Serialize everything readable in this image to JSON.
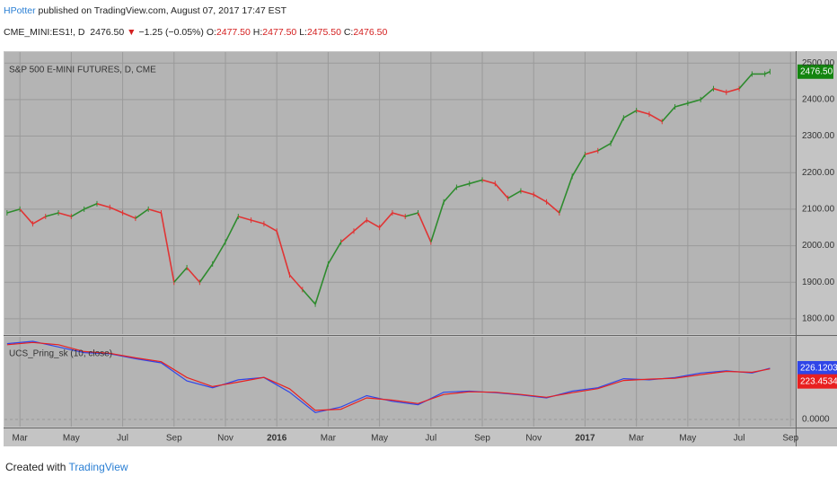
{
  "header": {
    "publisher": "HPotter",
    "published": "published on TradingView.com, August 07, 2017 17:47 EST",
    "symbol": "CME_MINI:ES1!, D",
    "last": "2476.50",
    "arrow": "▼",
    "change": "−1.25 (−0.05%)",
    "o_label": "O:",
    "o": "2477.50",
    "h_label": "H:",
    "h": "2477.50",
    "l_label": "L:",
    "l": "2475.50",
    "c_label": "C:",
    "c": "2476.50"
  },
  "chart_data": [
    {
      "type": "bar",
      "title": "S&P 500 E-MINI FUTURES, D, CME",
      "x": [
        1.5,
        2,
        2.5,
        3,
        3.5,
        4,
        4.5,
        5,
        5.5,
        6,
        6.5,
        7,
        7.5,
        8,
        8.5,
        9,
        9.5,
        10,
        10.5,
        11,
        11.5,
        12,
        12.5,
        13,
        13.5,
        14,
        14.5,
        15,
        15.5,
        16,
        16.5,
        17,
        17.5,
        18,
        18.5,
        19,
        19.5,
        20,
        20.5,
        21,
        21.5,
        22,
        22.5,
        23,
        23.5,
        24,
        24.5,
        25,
        25.5,
        26,
        26.5,
        27,
        27.5,
        28,
        28.5,
        29,
        29.5,
        30,
        30.5,
        31,
        31.2
      ],
      "values": [
        2090,
        2100,
        2060,
        2080,
        2090,
        2080,
        2100,
        2115,
        2105,
        2090,
        2075,
        2100,
        2090,
        1900,
        1940,
        1900,
        1950,
        2010,
        2080,
        2070,
        2060,
        2040,
        1920,
        1880,
        1840,
        1950,
        2010,
        2040,
        2070,
        2050,
        2090,
        2080,
        2090,
        2010,
        2120,
        2160,
        2170,
        2180,
        2170,
        2130,
        2150,
        2140,
        2120,
        2090,
        2190,
        2250,
        2260,
        2280,
        2350,
        2370,
        2360,
        2340,
        2380,
        2390,
        2400,
        2430,
        2420,
        2430,
        2470,
        2470,
        2476.5
      ],
      "colors": [
        "#2e8b2e",
        "#2e8b2e",
        "#e03434",
        "#e03434",
        "#2e8b2e",
        "#e03434",
        "#2e8b2e",
        "#2e8b2e",
        "#e03434",
        "#e03434",
        "#e03434",
        "#2e8b2e",
        "#e03434",
        "#e03434",
        "#2e8b2e",
        "#e03434",
        "#2e8b2e",
        "#2e8b2e",
        "#2e8b2e",
        "#e03434",
        "#e03434",
        "#e03434",
        "#e03434",
        "#e03434",
        "#2e8b2e",
        "#2e8b2e",
        "#2e8b2e",
        "#e03434",
        "#e03434",
        "#e03434",
        "#e03434",
        "#e03434",
        "#2e8b2e",
        "#e03434",
        "#2e8b2e",
        "#2e8b2e",
        "#2e8b2e",
        "#2e8b2e",
        "#e03434",
        "#e03434",
        "#2e8b2e",
        "#e03434",
        "#e03434",
        "#e03434",
        "#2e8b2e",
        "#2e8b2e",
        "#e03434",
        "#2e8b2e",
        "#2e8b2e",
        "#2e8b2e",
        "#e03434",
        "#e03434",
        "#2e8b2e",
        "#2e8b2e",
        "#2e8b2e",
        "#2e8b2e",
        "#e03434",
        "#e03434",
        "#2e8b2e",
        "#2e8b2e",
        "#2e8b2e"
      ],
      "last_price": {
        "value": 2476.5,
        "label": "2476.50",
        "color": "#13850f"
      },
      "xlim": [
        1.4,
        32.2
      ],
      "xticks": [
        {
          "value": 2,
          "label": "Mar"
        },
        {
          "value": 4,
          "label": "May"
        },
        {
          "value": 6,
          "label": "Jul"
        },
        {
          "value": 8,
          "label": "Sep"
        },
        {
          "value": 10,
          "label": "Nov"
        },
        {
          "value": 12,
          "label": "2016"
        },
        {
          "value": 14,
          "label": "Mar"
        },
        {
          "value": 16,
          "label": "May"
        },
        {
          "value": 18,
          "label": "Jul"
        },
        {
          "value": 20,
          "label": "Sep"
        },
        {
          "value": 22,
          "label": "Nov"
        },
        {
          "value": 24,
          "label": "2017"
        },
        {
          "value": 26,
          "label": "Mar"
        },
        {
          "value": 28,
          "label": "May"
        },
        {
          "value": 30,
          "label": "Jul"
        },
        {
          "value": 32,
          "label": "Sep"
        }
      ],
      "ylim": [
        1758,
        2530
      ],
      "yticks": [
        {
          "value": 1800,
          "label": "1800.00"
        },
        {
          "value": 1900,
          "label": "1900.00"
        },
        {
          "value": 2000,
          "label": "2000.00"
        },
        {
          "value": 2100,
          "label": "2100.00"
        },
        {
          "value": 2200,
          "label": "2200.00"
        },
        {
          "value": 2300,
          "label": "2300.00"
        },
        {
          "value": 2400,
          "label": "2400.00"
        },
        {
          "value": 2500,
          "label": "2500.00"
        }
      ],
      "grid": true
    },
    {
      "type": "line",
      "title": "UCS_Pring_sk (10, close)",
      "x": [
        1.5,
        2.5,
        3.5,
        4.5,
        5.5,
        6.5,
        7.5,
        8.5,
        9.5,
        10.5,
        11.5,
        12.5,
        13.5,
        14.5,
        15.5,
        16.5,
        17.5,
        18.5,
        19.5,
        20.5,
        21.5,
        22.5,
        23.5,
        24.5,
        25.5,
        26.5,
        27.5,
        28.5,
        29.5,
        30.5,
        31.2
      ],
      "series": [
        {
          "color": "#2f45e8",
          "values": [
            335,
            345,
            320,
            295,
            290,
            268,
            250,
            170,
            140,
            175,
            185,
            120,
            30,
            55,
            105,
            80,
            65,
            120,
            125,
            118,
            108,
            95,
            125,
            140,
            180,
            175,
            185,
            205,
            215,
            205,
            226.1203
          ]
        },
        {
          "color": "#e82020",
          "values": [
            330,
            340,
            330,
            300,
            292,
            272,
            255,
            185,
            145,
            165,
            186,
            135,
            40,
            45,
            95,
            85,
            70,
            110,
            122,
            120,
            110,
            98,
            118,
            136,
            172,
            178,
            182,
            198,
            212,
            208,
            223.4534
          ]
        }
      ],
      "xlim": [
        1.4,
        32.2
      ],
      "ylim": [
        -32,
        365
      ],
      "yticks": [
        {
          "value": 0,
          "label": "0.0000"
        }
      ],
      "grid": true
    }
  ],
  "footer": {
    "created": "Created with",
    "brand": "TradingView"
  }
}
